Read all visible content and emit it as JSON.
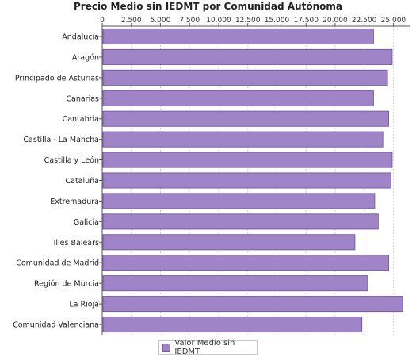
{
  "chart_data": {
    "type": "bar",
    "orientation": "horizontal",
    "title": "Precio Medio sin IEDMT por Comunidad Autónoma",
    "categories": [
      "Andalucía",
      "Aragón",
      "Principado de Asturias",
      "Canarias",
      "Cantabria",
      "Castilla - La Mancha",
      "Castilla y León",
      "Cataluña",
      "Extremadura",
      "Galicia",
      "Illes Balears",
      "Comunidad de Madrid",
      "Región de Murcia",
      "La Rioja",
      "Comunidad Valenciana"
    ],
    "series": [
      {
        "name": "Valor Medio sin IEDMT",
        "values": [
          23300,
          24900,
          24500,
          23300,
          24600,
          24100,
          24900,
          24800,
          23400,
          23700,
          21700,
          24600,
          22800,
          25800,
          22300
        ]
      }
    ],
    "xlim": [
      0,
      26400
    ],
    "ticks": [
      "0",
      "2.500",
      "5.000",
      "7.500",
      "10.000",
      "12.500",
      "15.000",
      "17.500",
      "20.000",
      "22.500",
      "25.000"
    ],
    "tick_values": [
      0,
      2500,
      5000,
      7500,
      10000,
      12500,
      15000,
      17500,
      20000,
      22500,
      25000
    ],
    "axis_position": "top",
    "grid": true,
    "legend_position": "bottom-center",
    "colors": {
      "bar_fill": "#a084c8",
      "bar_stroke": "#6a4e98",
      "grid": "#d0d0d0",
      "axis": "#555555"
    }
  }
}
